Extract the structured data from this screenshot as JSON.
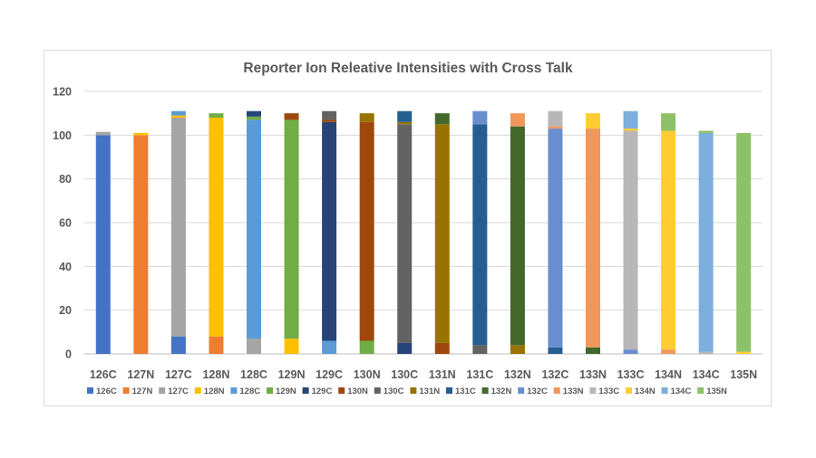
{
  "chart_data": {
    "type": "bar",
    "stacked": true,
    "title": "Reporter Ion Releative Intensities with Cross Talk",
    "xlabel": "",
    "ylabel": "",
    "ylim": [
      0,
      120
    ],
    "yticks": [
      0,
      20,
      40,
      60,
      80,
      100,
      120
    ],
    "grid": true,
    "legend_position": "bottom",
    "categories": [
      "126C",
      "127N",
      "127C",
      "128N",
      "128C",
      "129N",
      "129C",
      "130N",
      "130C",
      "131N",
      "131C",
      "132N",
      "132C",
      "133N",
      "133C",
      "134N",
      "134C",
      "135N"
    ],
    "series": [
      {
        "name": "126C",
        "color": "#4472C4",
        "values": [
          100,
          0,
          8,
          0,
          0,
          0,
          0,
          0,
          0,
          0,
          0,
          0,
          0,
          0,
          0,
          0,
          0,
          0
        ]
      },
      {
        "name": "127N",
        "color": "#ED7D31",
        "values": [
          0,
          100,
          0,
          8,
          0,
          0,
          0,
          0,
          0,
          0,
          0,
          0,
          0,
          0,
          0,
          0,
          0,
          0
        ]
      },
      {
        "name": "127C",
        "color": "#A5A5A5",
        "values": [
          1.5,
          0,
          100,
          0,
          7,
          0,
          0,
          0,
          0,
          0,
          0,
          0,
          0,
          0,
          0,
          0,
          0,
          0
        ]
      },
      {
        "name": "128N",
        "color": "#FFC000",
        "values": [
          0,
          1,
          1,
          100,
          0,
          7,
          0,
          0,
          0,
          0,
          0,
          0,
          0,
          0,
          0,
          0,
          0,
          0
        ]
      },
      {
        "name": "128C",
        "color": "#5B9BD5",
        "values": [
          0,
          0,
          2,
          0,
          100,
          0,
          6,
          0,
          0,
          0,
          0,
          0,
          0,
          0,
          0,
          0,
          0,
          0
        ]
      },
      {
        "name": "129N",
        "color": "#70AD47",
        "values": [
          0,
          0,
          0,
          2,
          1.5,
          100,
          0,
          6,
          0,
          0,
          0,
          0,
          0,
          0,
          0,
          0,
          0,
          0
        ]
      },
      {
        "name": "129C",
        "color": "#264478",
        "values": [
          0,
          0,
          0,
          0,
          2.5,
          0,
          100,
          0,
          5,
          0,
          0,
          0,
          0,
          0,
          0,
          0,
          0,
          0
        ]
      },
      {
        "name": "130N",
        "color": "#9E480E",
        "values": [
          0,
          0,
          0,
          0,
          0,
          3,
          1,
          100,
          0,
          5,
          0,
          0,
          0,
          0,
          0,
          0,
          0,
          0
        ]
      },
      {
        "name": "130C",
        "color": "#636363",
        "values": [
          0,
          0,
          0,
          0,
          0,
          0,
          4,
          0,
          100,
          0,
          4,
          0,
          0,
          0,
          0,
          0,
          0,
          0
        ]
      },
      {
        "name": "131N",
        "color": "#997300",
        "values": [
          0,
          0,
          0,
          0,
          0,
          0,
          0,
          4,
          1,
          100,
          0,
          4,
          0,
          0,
          0,
          0,
          0,
          0
        ]
      },
      {
        "name": "131C",
        "color": "#255E91",
        "values": [
          0,
          0,
          0,
          0,
          0,
          0,
          0,
          0,
          5,
          0,
          101,
          0,
          3,
          0,
          0,
          0,
          0,
          0
        ]
      },
      {
        "name": "132N",
        "color": "#43682B",
        "values": [
          0,
          0,
          0,
          0,
          0,
          0,
          0,
          0,
          0,
          5,
          0,
          100,
          0,
          3,
          0,
          0,
          0,
          0
        ]
      },
      {
        "name": "132C",
        "color": "#698ED0",
        "values": [
          0,
          0,
          0,
          0,
          0,
          0,
          0,
          0,
          0,
          0,
          6,
          0,
          100,
          0,
          2,
          0,
          0,
          0
        ]
      },
      {
        "name": "133N",
        "color": "#F1975A",
        "values": [
          0,
          0,
          0,
          0,
          0,
          0,
          0,
          0,
          0,
          0,
          0,
          6,
          1,
          100,
          0,
          2,
          0,
          0
        ]
      },
      {
        "name": "133C",
        "color": "#B7B7B7",
        "values": [
          0,
          0,
          0,
          0,
          0,
          0,
          0,
          0,
          0,
          0,
          0,
          0,
          7,
          0,
          100,
          0,
          1,
          0
        ]
      },
      {
        "name": "134N",
        "color": "#FFCD33",
        "values": [
          0,
          0,
          0,
          0,
          0,
          0,
          0,
          0,
          0,
          0,
          0,
          0,
          0,
          7,
          1,
          100,
          0,
          1
        ]
      },
      {
        "name": "134C",
        "color": "#7CAFDD",
        "values": [
          0,
          0,
          0,
          0,
          0,
          0,
          0,
          0,
          0,
          0,
          0,
          0,
          0,
          0,
          8,
          0,
          100,
          0
        ]
      },
      {
        "name": "135N",
        "color": "#8CC168",
        "values": [
          0,
          0,
          0,
          0,
          0,
          0,
          0,
          0,
          0,
          0,
          0,
          0,
          0,
          0,
          0,
          8,
          1,
          100
        ]
      }
    ]
  }
}
